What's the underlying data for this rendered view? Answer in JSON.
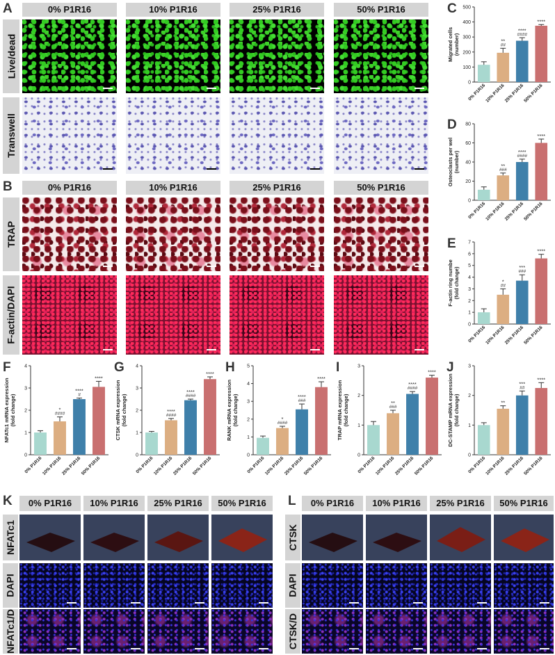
{
  "panels": {
    "A": "A",
    "B": "B",
    "C": "C",
    "D": "D",
    "E": "E",
    "F": "F",
    "G": "G",
    "H": "H",
    "I": "I",
    "J": "J",
    "K": "K",
    "L": "L"
  },
  "groups": [
    "0% P1R16",
    "10% P1R16",
    "25% P1R16",
    "50% P1R16"
  ],
  "rows": {
    "live": "Live/dead",
    "transwell": "Transwell",
    "trap": "TRAP",
    "factin": "F-actin/DAPI",
    "nfatc1": "NFATc1",
    "dapi_k": "DAPI",
    "nfatc1_d": "NFATc1/D",
    "ctsk": "CTSK",
    "dapi_l": "DAPI",
    "ctsk_d": "CTSK/D"
  },
  "colors": {
    "g0": "#a8d8cf",
    "g1": "#dcae82",
    "g2": "#3f80aa",
    "g3": "#c97070"
  },
  "chart_data": [
    {
      "id": "C",
      "type": "bar",
      "categories": [
        "0% P1R16",
        "10% P1R16",
        "25% P1R16",
        "50% P1R16"
      ],
      "values": [
        115,
        195,
        275,
        375
      ],
      "errors": [
        20,
        30,
        20,
        8
      ],
      "ylabel": [
        "Migrated cells",
        "(number)"
      ],
      "ylim": [
        0,
        500
      ],
      "yticks": [
        0,
        100,
        200,
        300,
        400,
        500
      ],
      "sig_top": [
        "",
        "**",
        "****",
        "****"
      ],
      "sig_bot": [
        "",
        "##",
        "####",
        ""
      ]
    },
    {
      "id": "D",
      "type": "bar",
      "categories": [
        "0% P1R16",
        "10% P1R16",
        "25% P1R16",
        "50% P1R16"
      ],
      "values": [
        11,
        26,
        40,
        60
      ],
      "errors": [
        3,
        2.5,
        3,
        4
      ],
      "ylabel": [
        "Osteoclasts per wel",
        "(number)"
      ],
      "ylim": [
        0,
        80
      ],
      "yticks": [
        0,
        20,
        40,
        60,
        80
      ],
      "sig_top": [
        "",
        "**",
        "****",
        "****"
      ],
      "sig_bot": [
        "",
        "###",
        "####",
        ""
      ]
    },
    {
      "id": "E",
      "type": "bar",
      "categories": [
        "0% P1R16",
        "10% P1R16",
        "25% P1R16",
        "50% P1R16"
      ],
      "values": [
        1.0,
        2.5,
        3.7,
        5.6
      ],
      "errors": [
        0.3,
        0.5,
        0.5,
        0.35
      ],
      "ylabel": [
        "F-actin ring numbe",
        "(fold change)"
      ],
      "ylim": [
        0,
        7
      ],
      "yticks": [
        0,
        1,
        2,
        3,
        4,
        5,
        6,
        7
      ],
      "sig_top": [
        "",
        "*",
        "***",
        "****"
      ],
      "sig_bot": [
        "",
        "##",
        "###",
        ""
      ]
    },
    {
      "id": "F",
      "type": "bar",
      "categories": [
        "0% P1R16",
        "10% P1R16",
        "25% P1R16",
        "50% P1R16"
      ],
      "values": [
        1.0,
        1.5,
        2.5,
        3.05
      ],
      "errors": [
        0.08,
        0.2,
        0.05,
        0.25
      ],
      "ylabel": [
        "NFATc1 mRNA expression",
        "(fold change)"
      ],
      "ylim": [
        0,
        4
      ],
      "yticks": [
        0,
        1,
        2,
        3,
        4
      ],
      "sig_top": [
        "",
        "*",
        "****",
        "****"
      ],
      "sig_bot": [
        "",
        "####",
        "#",
        ""
      ]
    },
    {
      "id": "G",
      "type": "bar",
      "categories": [
        "0% P1R16",
        "10% P1R16",
        "25% P1R16",
        "50% P1R16"
      ],
      "values": [
        1.0,
        1.55,
        2.45,
        3.4
      ],
      "errors": [
        0.05,
        0.08,
        0.05,
        0.1
      ],
      "ylabel": [
        "CTSK mRNA expression",
        "(fold change)"
      ],
      "ylim": [
        0,
        4
      ],
      "yticks": [
        0,
        1,
        2,
        3,
        4
      ],
      "sig_top": [
        "",
        "****",
        "****",
        "****"
      ],
      "sig_bot": [
        "",
        "####",
        "####",
        ""
      ]
    },
    {
      "id": "H",
      "type": "bar",
      "categories": [
        "0% P1R16",
        "10% P1R16",
        "25% P1R16",
        "50% P1R16"
      ],
      "values": [
        0.95,
        1.5,
        2.55,
        3.8
      ],
      "errors": [
        0.1,
        0.1,
        0.3,
        0.3
      ],
      "ylabel": [
        "RANK mRNA expression",
        "(fold change)"
      ],
      "ylim": [
        0,
        5
      ],
      "yticks": [
        0,
        1,
        2,
        3,
        4,
        5
      ],
      "sig_top": [
        "",
        "*",
        "****",
        "****"
      ],
      "sig_bot": [
        "",
        "####",
        "###",
        ""
      ]
    },
    {
      "id": "I",
      "type": "bar",
      "categories": [
        "0% P1R16",
        "10% P1R16",
        "25% P1R16",
        "50% P1R16"
      ],
      "values": [
        1.0,
        1.4,
        2.05,
        2.6
      ],
      "errors": [
        0.12,
        0.1,
        0.08,
        0.08
      ],
      "ylabel": [
        "TRAP mRNA expression",
        "(fold change)"
      ],
      "ylim": [
        0,
        3
      ],
      "yticks": [
        0,
        1,
        2,
        3
      ],
      "sig_top": [
        "",
        "**",
        "****",
        "****"
      ],
      "sig_bot": [
        "",
        "###",
        "####",
        ""
      ]
    },
    {
      "id": "J",
      "type": "bar",
      "categories": [
        "0% P1R16",
        "10% P1R16",
        "25% P1R16",
        "50% P1R16"
      ],
      "values": [
        1.0,
        1.55,
        2.0,
        2.25
      ],
      "errors": [
        0.08,
        0.1,
        0.15,
        0.18
      ],
      "ylabel": [
        "DC-STAMP mRNA expression",
        "(fold change)"
      ],
      "ylim": [
        0,
        3
      ],
      "yticks": [
        0,
        1,
        2,
        3
      ],
      "sig_top": [
        "",
        "**",
        "***",
        "****"
      ],
      "sig_bot": [
        "",
        "",
        "##",
        ""
      ]
    }
  ]
}
